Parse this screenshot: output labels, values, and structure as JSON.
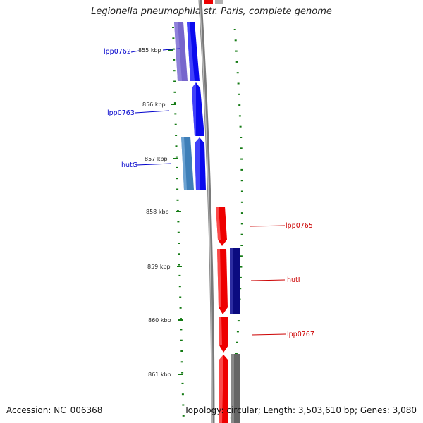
{
  "title": "Legionella pneumophila str. Paris, complete genome",
  "footer": {
    "accession": "Accession: NC_006368",
    "topology": "Topology: circular; Length: 3,503,610 bp; Genes: 3,080"
  },
  "colors": {
    "forward_strand": "#0000ee",
    "reverse_strand": "#ee0000",
    "tick_color": "#137a13",
    "backbone": "#888888"
  },
  "kbp_ticks": [
    "855 kbp",
    "856 kbp",
    "857 kbp",
    "858 kbp",
    "859 kbp",
    "860 kbp",
    "861 kbp"
  ],
  "genes_left": [
    {
      "label": "lpp0762",
      "color": "#0000cc"
    },
    {
      "label": "lpp0763",
      "color": "#0000cc"
    },
    {
      "label": "hutG",
      "color": "#0000cc"
    }
  ],
  "genes_right": [
    {
      "label": "lpp0765",
      "color": "#cc0000"
    },
    {
      "label": "hutI",
      "color": "#cc0000"
    },
    {
      "label": "lpp0767",
      "color": "#cc0000"
    }
  ]
}
